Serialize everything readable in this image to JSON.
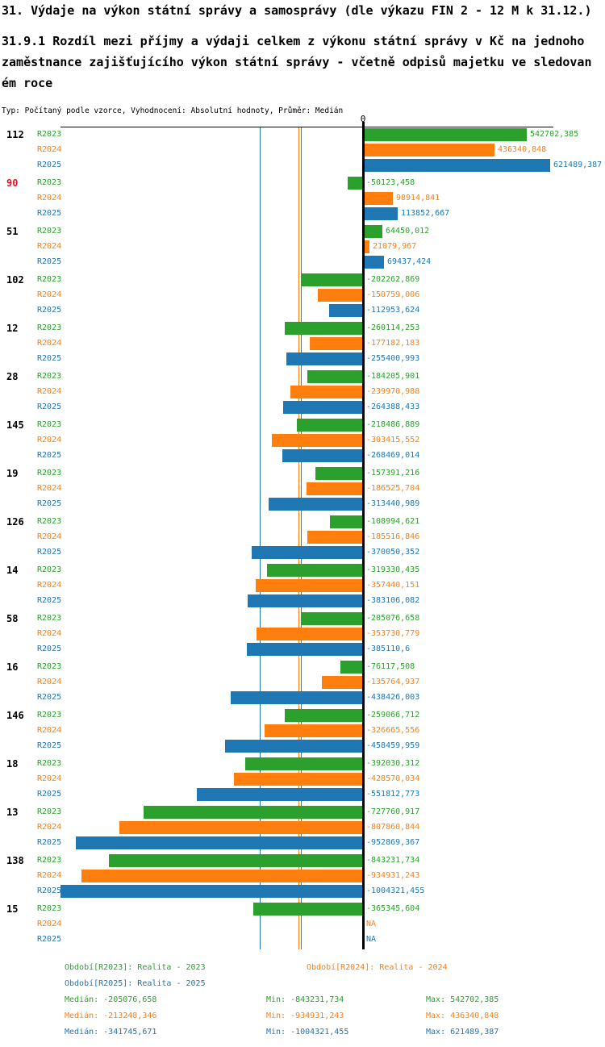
{
  "header": {
    "title": "31. Výdaje na výkon státní správy a samosprávy (dle výkazu FIN 2 - 12 M k 31.12.)",
    "subtitle_lines": [
      "31.9.1 Rozdíl mezi příjmy a výdaji celkem z výkonu státní správy v Kč na jednoho",
      "zaměstnance zajišťujícího výkon státní správy - včetně odpisů majetku ve sledovan",
      "ém roce"
    ],
    "meta": "Typ: Počítaný podle vzorce, Vyhodnocení: Absolutní hodnoty, Průměr: Medián"
  },
  "colors": {
    "r2023": "#2ca02c",
    "r2024": "#ff7f0e",
    "r2025": "#1f77b4",
    "highlight_row": "#e8112d",
    "axis": "#000000"
  },
  "chart_data": {
    "type": "bar",
    "orientation": "horizontal",
    "zero_label": "0",
    "na_label": "NA",
    "series_names": [
      "R2023",
      "R2024",
      "R2025"
    ],
    "xlim": [
      -1004321.455,
      621489.387
    ],
    "grid": "off",
    "legend_position": "bottom",
    "medians": [
      -205076.658,
      -213248.346,
      -341745.671
    ],
    "groups": [
      {
        "id": "112",
        "highlight": false,
        "values": [
          542702.385,
          436340.848,
          621489.387
        ],
        "labels": [
          "542702,385",
          "436340,848",
          "621489,387"
        ]
      },
      {
        "id": "90",
        "highlight": true,
        "values": [
          -50123.458,
          98914.841,
          113852.667
        ],
        "labels": [
          "-50123,458",
          "98914,841",
          "113852,667"
        ]
      },
      {
        "id": "51",
        "highlight": false,
        "values": [
          64450.012,
          21079.967,
          69437.424
        ],
        "labels": [
          "64450,012",
          "21079,967",
          "69437,424"
        ]
      },
      {
        "id": "102",
        "highlight": false,
        "values": [
          -202262.869,
          -150759.006,
          -112953.624
        ],
        "labels": [
          "-202262,869",
          "-150759,006",
          "-112953,624"
        ]
      },
      {
        "id": "12",
        "highlight": false,
        "values": [
          -260114.253,
          -177182.183,
          -255400.993
        ],
        "labels": [
          "-260114,253",
          "-177182,183",
          "-255400,993"
        ]
      },
      {
        "id": "28",
        "highlight": false,
        "values": [
          -184205.901,
          -239970.988,
          -264388.433
        ],
        "labels": [
          "-184205,901",
          "-239970,988",
          "-264388,433"
        ]
      },
      {
        "id": "145",
        "highlight": false,
        "values": [
          -218486.889,
          -303415.552,
          -268469.014
        ],
        "labels": [
          "-218486,889",
          "-303415,552",
          "-268469,014"
        ]
      },
      {
        "id": "19",
        "highlight": false,
        "values": [
          -157391.216,
          -186525.704,
          -313440.989
        ],
        "labels": [
          "-157391,216",
          "-186525,704",
          "-313440,989"
        ]
      },
      {
        "id": "126",
        "highlight": false,
        "values": [
          -108994.621,
          -185516.846,
          -370050.352
        ],
        "labels": [
          "-108994,621",
          "-185516,846",
          "-370050,352"
        ]
      },
      {
        "id": "14",
        "highlight": false,
        "values": [
          -319330.435,
          -357440.151,
          -383106.082
        ],
        "labels": [
          "-319330,435",
          "-357440,151",
          "-383106,082"
        ]
      },
      {
        "id": "58",
        "highlight": false,
        "values": [
          -205076.658,
          -353730.779,
          -385110.6
        ],
        "labels": [
          "-205076,658",
          "-353730,779",
          "-385110,6"
        ]
      },
      {
        "id": "16",
        "highlight": false,
        "values": [
          -76117.508,
          -135764.937,
          -438426.003
        ],
        "labels": [
          "-76117,508",
          "-135764,937",
          "-438426,003"
        ]
      },
      {
        "id": "146",
        "highlight": false,
        "values": [
          -259066.712,
          -326665.556,
          -458459.959
        ],
        "labels": [
          "-259066,712",
          "-326665,556",
          "-458459,959"
        ]
      },
      {
        "id": "18",
        "highlight": false,
        "values": [
          -392030.312,
          -428570.034,
          -551812.773
        ],
        "labels": [
          "-392030,312",
          "-428570,034",
          "-551812,773"
        ]
      },
      {
        "id": "13",
        "highlight": false,
        "values": [
          -727760.917,
          -807860.844,
          -952869.367
        ],
        "labels": [
          "-727760,917",
          "-807860,844",
          "-952869,367"
        ]
      },
      {
        "id": "138",
        "highlight": false,
        "values": [
          -843231.734,
          -934931.243,
          -1004321.455
        ],
        "labels": [
          "-843231,734",
          "-934931,243",
          "-1004321,455"
        ]
      },
      {
        "id": "15",
        "highlight": false,
        "values": [
          -365345.604,
          null,
          null
        ],
        "labels": [
          "-365345,604",
          "NA",
          "NA"
        ]
      }
    ]
  },
  "footer": {
    "legends": [
      {
        "text": "Období[R2023]: Realita - 2023"
      },
      {
        "text": "Období[R2024]: Realita - 2024"
      },
      {
        "text": "Období[R2025]: Realita - 2025"
      }
    ],
    "stats": [
      {
        "median": "Medián: -205076,658",
        "min": "Min: -843231,734",
        "max": "Max: 542702,385"
      },
      {
        "median": "Medián: -213248,346",
        "min": "Min: -934931,243",
        "max": "Max: 436340,848"
      },
      {
        "median": "Medián: -341745,671",
        "min": "Min: -1004321,455",
        "max": "Max: 621489,387"
      }
    ]
  }
}
